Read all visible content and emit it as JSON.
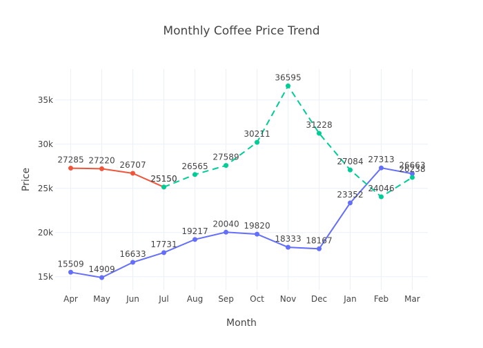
{
  "chart_data": {
    "type": "line",
    "title": "Monthly Coffee Price Trend",
    "xlabel": "Month",
    "ylabel": "Price",
    "categories": [
      "Apr",
      "May",
      "Jun",
      "Jul",
      "Aug",
      "Sep",
      "Oct",
      "Nov",
      "Dec",
      "Jan",
      "Feb",
      "Mar"
    ],
    "ylim": [
      13500,
      38500
    ],
    "yticks": [
      15000,
      20000,
      25000,
      30000,
      35000
    ],
    "ytick_labels": [
      "15k",
      "20k",
      "25k",
      "30k",
      "35k"
    ],
    "grid": true,
    "series": [
      {
        "color": "#636efa",
        "style": "solid",
        "x": [
          "Apr",
          "May",
          "Jun",
          "Jul",
          "Aug",
          "Sep",
          "Oct",
          "Nov",
          "Dec",
          "Jan",
          "Feb",
          "Mar"
        ],
        "values": [
          15509,
          14909,
          16633,
          17731,
          19217,
          20040,
          19820,
          18333,
          18167,
          23352,
          27313,
          26663
        ]
      },
      {
        "color": "#ef553b",
        "style": "solid",
        "x": [
          "Apr",
          "May",
          "Jun",
          "Jul"
        ],
        "values": [
          27285,
          27220,
          26707,
          25150
        ]
      },
      {
        "color": "#00cc96",
        "style": "dash",
        "x": [
          "Jul",
          "Aug",
          "Sep",
          "Oct",
          "Nov",
          "Dec",
          "Jan",
          "Feb",
          "Mar"
        ],
        "values": [
          25150,
          26565,
          27589,
          30211,
          36595,
          31228,
          27084,
          24046,
          26238
        ]
      }
    ]
  }
}
